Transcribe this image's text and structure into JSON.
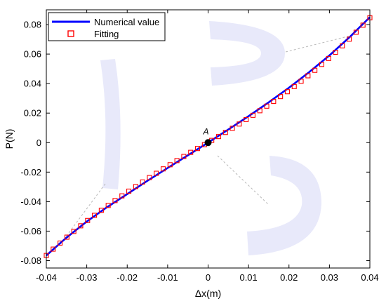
{
  "chart_data": {
    "type": "line",
    "xlabel": "Δx(m)",
    "ylabel": "P(N)",
    "xlim": [
      -0.04,
      0.04
    ],
    "ylim": [
      -0.085,
      0.09
    ],
    "xticks": [
      -0.04,
      -0.03,
      -0.02,
      -0.01,
      0,
      0.01,
      0.02,
      0.03,
      0.04
    ],
    "xtick_labels": [
      "-0.04",
      "-0.03",
      "-0.02",
      "-0.01",
      "0",
      "0.01",
      "0.02",
      "0.03",
      "0.04"
    ],
    "yticks": [
      -0.08,
      -0.06,
      -0.04,
      -0.02,
      0,
      0.02,
      0.04,
      0.06,
      0.08
    ],
    "ytick_labels": [
      "-0.08",
      "-0.06",
      "-0.04",
      "-0.02",
      "0",
      "0.02",
      "0.04",
      "0.06",
      "0.08"
    ],
    "grid": false,
    "legend_position": "top-left",
    "annotation": {
      "label": "A",
      "x": 0,
      "y": 0
    },
    "series": [
      {
        "name": "Numerical value",
        "style": "line",
        "color": "#0000ff",
        "x": [
          -0.04,
          -0.035,
          -0.03,
          -0.025,
          -0.02,
          -0.015,
          -0.01,
          -0.005,
          0,
          0.005,
          0.01,
          0.015,
          0.02,
          0.025,
          0.03,
          0.035,
          0.04
        ],
        "y": [
          -0.0765,
          -0.0644,
          -0.0535,
          -0.0438,
          -0.0349,
          -0.0259,
          -0.0172,
          -0.0086,
          0,
          0.0089,
          0.0179,
          0.0273,
          0.0372,
          0.0478,
          0.0591,
          0.0715,
          0.085
        ]
      },
      {
        "name": "Fitting",
        "style": "markers",
        "marker": "square",
        "color": "#ff0000",
        "x": [
          -0.04,
          -0.0383,
          -0.0366,
          -0.0349,
          -0.0332,
          -0.0315,
          -0.0298,
          -0.0281,
          -0.0264,
          -0.0247,
          -0.023,
          -0.0213,
          -0.0196,
          -0.0179,
          -0.0162,
          -0.0145,
          -0.0128,
          -0.0111,
          -0.0094,
          -0.0077,
          -0.006,
          -0.0043,
          -0.0026,
          -0.0009,
          0.0009,
          0.0026,
          0.0043,
          0.006,
          0.0077,
          0.0094,
          0.0111,
          0.0128,
          0.0145,
          0.0162,
          0.0179,
          0.0196,
          0.0213,
          0.023,
          0.0247,
          0.0264,
          0.0281,
          0.0298,
          0.0315,
          0.0332,
          0.0349,
          0.0366,
          0.0383,
          0.04
        ],
        "y": [
          -0.0765,
          -0.0722,
          -0.0681,
          -0.0641,
          -0.0602,
          -0.0564,
          -0.0528,
          -0.0493,
          -0.0459,
          -0.0426,
          -0.0393,
          -0.0361,
          -0.0329,
          -0.0298,
          -0.0267,
          -0.0237,
          -0.0208,
          -0.0178,
          -0.015,
          -0.0122,
          -0.0094,
          -0.0066,
          -0.004,
          -0.0014,
          0.0015,
          0.0041,
          0.0069,
          0.0097,
          0.0126,
          0.0156,
          0.0185,
          0.0216,
          0.0247,
          0.0279,
          0.0312,
          0.0345,
          0.038,
          0.0416,
          0.0453,
          0.049,
          0.053,
          0.057,
          0.0612,
          0.0656,
          0.0701,
          0.0748,
          0.0796,
          0.0846
        ]
      }
    ]
  },
  "colors": {
    "background": "#ffffff",
    "axes": "#000000",
    "watermark": "#e8e9fa",
    "leader_line": "#b8b8b8"
  }
}
